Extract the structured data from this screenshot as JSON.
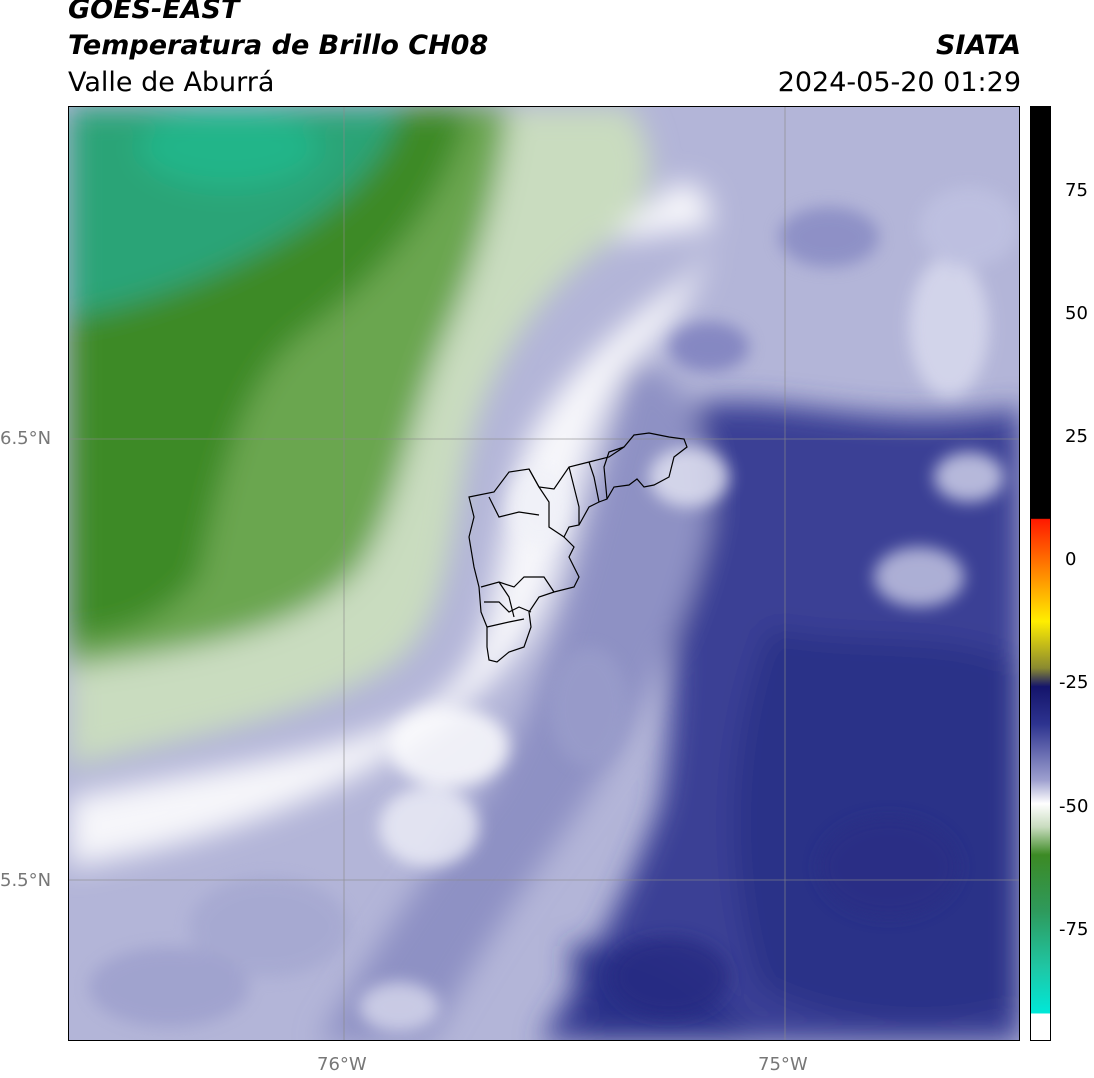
{
  "header": {
    "satellite": "GOES-EAST",
    "product": "Temperatura de Brillo CH08",
    "region": "Valle de Aburrá",
    "organization": "SIATA",
    "timestamp": "2024-05-20 01:29"
  },
  "map": {
    "lat_labels": [
      "6.5°N",
      "5.5°N"
    ],
    "lon_labels": [
      "76°W",
      "75°W"
    ],
    "grid_lines": true,
    "overlay": "municipality boundaries"
  },
  "colorbar": {
    "ticks": [
      "75",
      "50",
      "25",
      "0",
      "-25",
      "-50",
      "-75"
    ],
    "colors": {
      "black": "#000000",
      "red": "#ff1a00",
      "orange": "#ff8c00",
      "yellow": "#ffee00",
      "navy": "#14146b",
      "blue": "#2d338f",
      "lavender": "#c7c9e3",
      "white": "#ffffff",
      "green": "#3c8a24",
      "teal": "#1fc6a4",
      "cyan": "#00e8d8"
    }
  }
}
